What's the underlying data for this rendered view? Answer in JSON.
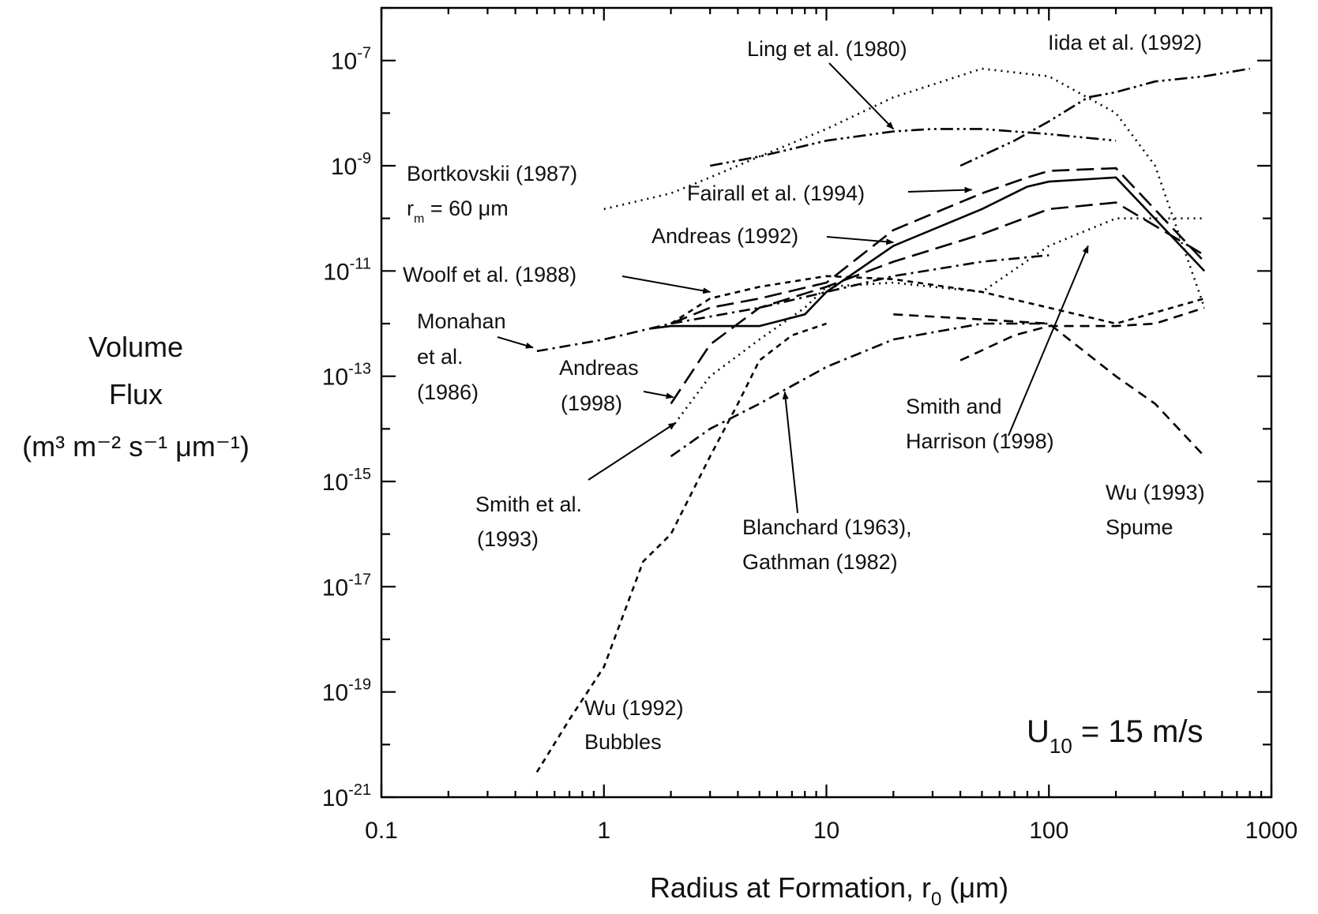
{
  "chart_data": {
    "type": "line",
    "xlabel": "Radius at Formation, r",
    "xlabel_sub": "0",
    "xlabel_unit": " (μm)",
    "ylabel_lines": [
      "Volume",
      "Flux",
      "(m³ m⁻² s⁻¹ μm⁻¹)"
    ],
    "x_scale": "log",
    "y_scale": "log",
    "xlim": [
      0.1,
      1000
    ],
    "ylim": [
      1e-21,
      1e-06
    ],
    "x_ticks": [
      {
        "v": 0.1,
        "label": "0.1"
      },
      {
        "v": 1,
        "label": "1"
      },
      {
        "v": 10,
        "label": "10"
      },
      {
        "v": 100,
        "label": "100"
      },
      {
        "v": 1000,
        "label": "1000"
      }
    ],
    "y_ticks": [
      {
        "v": 1e-21,
        "base": "10",
        "exp": "-21"
      },
      {
        "v": 1e-19,
        "base": "10",
        "exp": "-19"
      },
      {
        "v": 1e-17,
        "base": "10",
        "exp": "-17"
      },
      {
        "v": 1e-15,
        "base": "10",
        "exp": "-15"
      },
      {
        "v": 1e-13,
        "base": "10",
        "exp": "-13"
      },
      {
        "v": 1e-11,
        "base": "10",
        "exp": "-11"
      },
      {
        "v": 1e-09,
        "base": "10",
        "exp": "-9"
      },
      {
        "v": 1e-07,
        "base": "10",
        "exp": "-7"
      }
    ],
    "grid": false,
    "annotation": {
      "main": "U",
      "sub": "10",
      "rest": " = 15 m/s"
    },
    "series": [
      {
        "id": "wu1992",
        "name": "Wu (1992) Bubbles",
        "style": "short-dash",
        "x": [
          0.5,
          0.7,
          1,
          1.5,
          2,
          3,
          4,
          5,
          7,
          10
        ],
        "y": [
          3e-21,
          3e-20,
          3e-19,
          3e-17,
          1e-16,
          3e-15,
          3e-14,
          2e-13,
          6e-13,
          1e-12
        ]
      },
      {
        "id": "monahan1986",
        "name": "Monahan et al. (1986)",
        "style": "dash-dot",
        "x": [
          0.5,
          1,
          2,
          5,
          10,
          20,
          50,
          100
        ],
        "y": [
          3e-13,
          5e-13,
          1e-12,
          2e-12,
          4e-12,
          8e-12,
          1.5e-11,
          2e-11
        ]
      },
      {
        "id": "woolf1988",
        "name": "Woolf et al. (1988)",
        "style": "short-dash",
        "x": [
          2,
          3,
          5,
          10,
          20,
          50,
          100,
          200,
          500
        ],
        "y": [
          1e-12,
          3e-12,
          5e-12,
          8e-12,
          7e-12,
          4e-12,
          2e-12,
          1e-12,
          3e-12
        ]
      },
      {
        "id": "bortkovskii1987",
        "name": "Bortkovskii (1987)",
        "style": "dotted",
        "x": [
          1,
          2,
          3,
          5,
          10,
          20,
          50,
          100,
          200,
          300,
          500
        ],
        "y": [
          1.5e-10,
          3e-10,
          6e-10,
          1.5e-09,
          5e-09,
          2e-08,
          7e-08,
          5e-08,
          1e-08,
          1e-09,
          2e-12
        ]
      },
      {
        "id": "ling1980",
        "name": "Ling et al. (1980)",
        "style": "dash-dot-dot",
        "x": [
          3,
          5,
          10,
          20,
          30,
          50,
          100,
          200
        ],
        "y": [
          1e-09,
          1.5e-09,
          3e-09,
          4.5e-09,
          5e-09,
          5e-09,
          4e-09,
          3e-09
        ]
      },
      {
        "id": "iida1992",
        "name": "Iida et al. (1992)",
        "style": "dash-dot-dot",
        "x": [
          40,
          70,
          100,
          150,
          200,
          300,
          500,
          800
        ],
        "y": [
          1e-09,
          3e-09,
          7e-09,
          2e-08,
          2.5e-08,
          4e-08,
          5e-08,
          7e-08
        ]
      },
      {
        "id": "fairall1994",
        "name": "Fairall et al. (1994)",
        "style": "long-dash",
        "x": [
          2,
          3,
          5,
          10,
          20,
          50,
          80,
          100,
          200,
          500
        ],
        "y": [
          1e-12,
          2e-12,
          3e-12,
          6e-12,
          6e-11,
          3e-10,
          6e-10,
          8e-10,
          9e-10,
          1.5e-11
        ]
      },
      {
        "id": "andreas1992",
        "name": "Andreas (1992)",
        "style": "solid",
        "x": [
          1.6,
          2,
          3,
          5,
          8,
          10,
          20,
          50,
          80,
          100,
          200,
          500
        ],
        "y": [
          8e-13,
          9e-13,
          9e-13,
          9e-13,
          1.5e-12,
          4e-12,
          3e-11,
          1.5e-10,
          4e-10,
          5e-10,
          6e-10,
          1e-11
        ]
      },
      {
        "id": "andreas1998",
        "name": "Andreas (1998)",
        "style": "long-dash",
        "x": [
          2,
          3,
          5,
          10,
          20,
          50,
          100,
          200,
          500
        ],
        "y": [
          3e-14,
          4e-13,
          2e-12,
          5e-12,
          1.5e-11,
          5e-11,
          1.5e-10,
          2e-10,
          2e-11
        ]
      },
      {
        "id": "smith1993",
        "name": "Smith et al. (1993)",
        "style": "dotted",
        "x": [
          2,
          3,
          5,
          8,
          10,
          20,
          50,
          100,
          200,
          500
        ],
        "y": [
          1e-14,
          1e-13,
          5e-13,
          2e-12,
          5e-12,
          6e-12,
          4e-12,
          3e-11,
          1e-10,
          1e-10
        ]
      },
      {
        "id": "blanchard1963",
        "name": "Blanchard (1963), Gathman (1982)",
        "style": "dash-dot",
        "x": [
          2,
          3,
          5,
          10,
          20,
          50,
          100
        ],
        "y": [
          3e-15,
          1e-14,
          3e-14,
          1.5e-13,
          5e-13,
          1e-12,
          1e-12
        ]
      },
      {
        "id": "smithharrison1998",
        "name": "Smith and Harrison (1998)",
        "style": "medium-dash",
        "x": [
          40,
          70,
          100,
          200,
          300,
          500
        ],
        "y": [
          2e-13,
          6e-13,
          9e-13,
          9e-13,
          1e-12,
          2e-12
        ]
      },
      {
        "id": "wu1993",
        "name": "Wu (1993) Spume",
        "style": "medium-dash",
        "x": [
          20,
          50,
          100,
          200,
          300,
          500
        ],
        "y": [
          1.5e-12,
          1.2e-12,
          1e-12,
          1e-13,
          3e-14,
          3e-15
        ]
      }
    ],
    "labels": [
      {
        "id": "ling",
        "text": "Ling et al. (1980)"
      },
      {
        "id": "iida",
        "text": "Iida et al. (1992)"
      },
      {
        "id": "bortkovskii",
        "text": "Bortkovskii (1987)"
      },
      {
        "id": "rm",
        "text": "r",
        "sub": "m",
        "rest": " = 60 μm"
      },
      {
        "id": "fairall",
        "text": "Fairall et al. (1994)"
      },
      {
        "id": "andreas92",
        "text": "Andreas (1992)"
      },
      {
        "id": "woolf",
        "text": "Woolf et al. (1988)"
      },
      {
        "id": "monahan1",
        "text": "Monahan"
      },
      {
        "id": "monahan2",
        "text": "et al."
      },
      {
        "id": "monahan3",
        "text": "(1986)"
      },
      {
        "id": "andreas98a",
        "text": "Andreas"
      },
      {
        "id": "andreas98b",
        "text": "(1998)"
      },
      {
        "id": "smithharrison1",
        "text": "Smith and"
      },
      {
        "id": "smithharrison2",
        "text": "Harrison (1998)"
      },
      {
        "id": "wu93a",
        "text": "Wu (1993)"
      },
      {
        "id": "wu93b",
        "text": "Spume"
      },
      {
        "id": "smith93a",
        "text": "Smith et al."
      },
      {
        "id": "smith93b",
        "text": "(1993)"
      },
      {
        "id": "blanchard1",
        "text": "Blanchard (1963),"
      },
      {
        "id": "blanchard2",
        "text": "Gathman (1982)"
      },
      {
        "id": "wu92a",
        "text": "Wu (1992)"
      },
      {
        "id": "wu92b",
        "text": "Bubbles"
      }
    ]
  }
}
